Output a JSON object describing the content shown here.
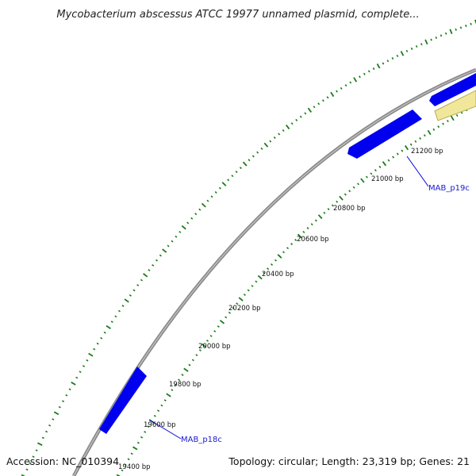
{
  "title": "Mycobacterium abscessus ATCC 19977 unnamed plasmid, complete...",
  "footer": {
    "accession": "Accession: NC_010394",
    "summary": "Topology: circular; Length: 23,319 bp; Genes: 21"
  },
  "colors": {
    "backbone": "#8a8a8a",
    "gene": "#0000ee",
    "feature": "#f1e79b",
    "tick": "#1a7a1a",
    "label_line": "#0000dd"
  },
  "ticks": [
    {
      "label": "19400 bp"
    },
    {
      "label": "19600 bp"
    },
    {
      "label": "19800 bp"
    },
    {
      "label": "20000 bp"
    },
    {
      "label": "20200 bp"
    },
    {
      "label": "20400 bp"
    },
    {
      "label": "20600 bp"
    },
    {
      "label": "20800 bp"
    },
    {
      "label": "21000 bp"
    },
    {
      "label": "21200 bp"
    }
  ],
  "genes": [
    {
      "name": "MAB_p18c",
      "strand": "-"
    },
    {
      "name": "MAB_p19c",
      "strand": "-"
    }
  ]
}
